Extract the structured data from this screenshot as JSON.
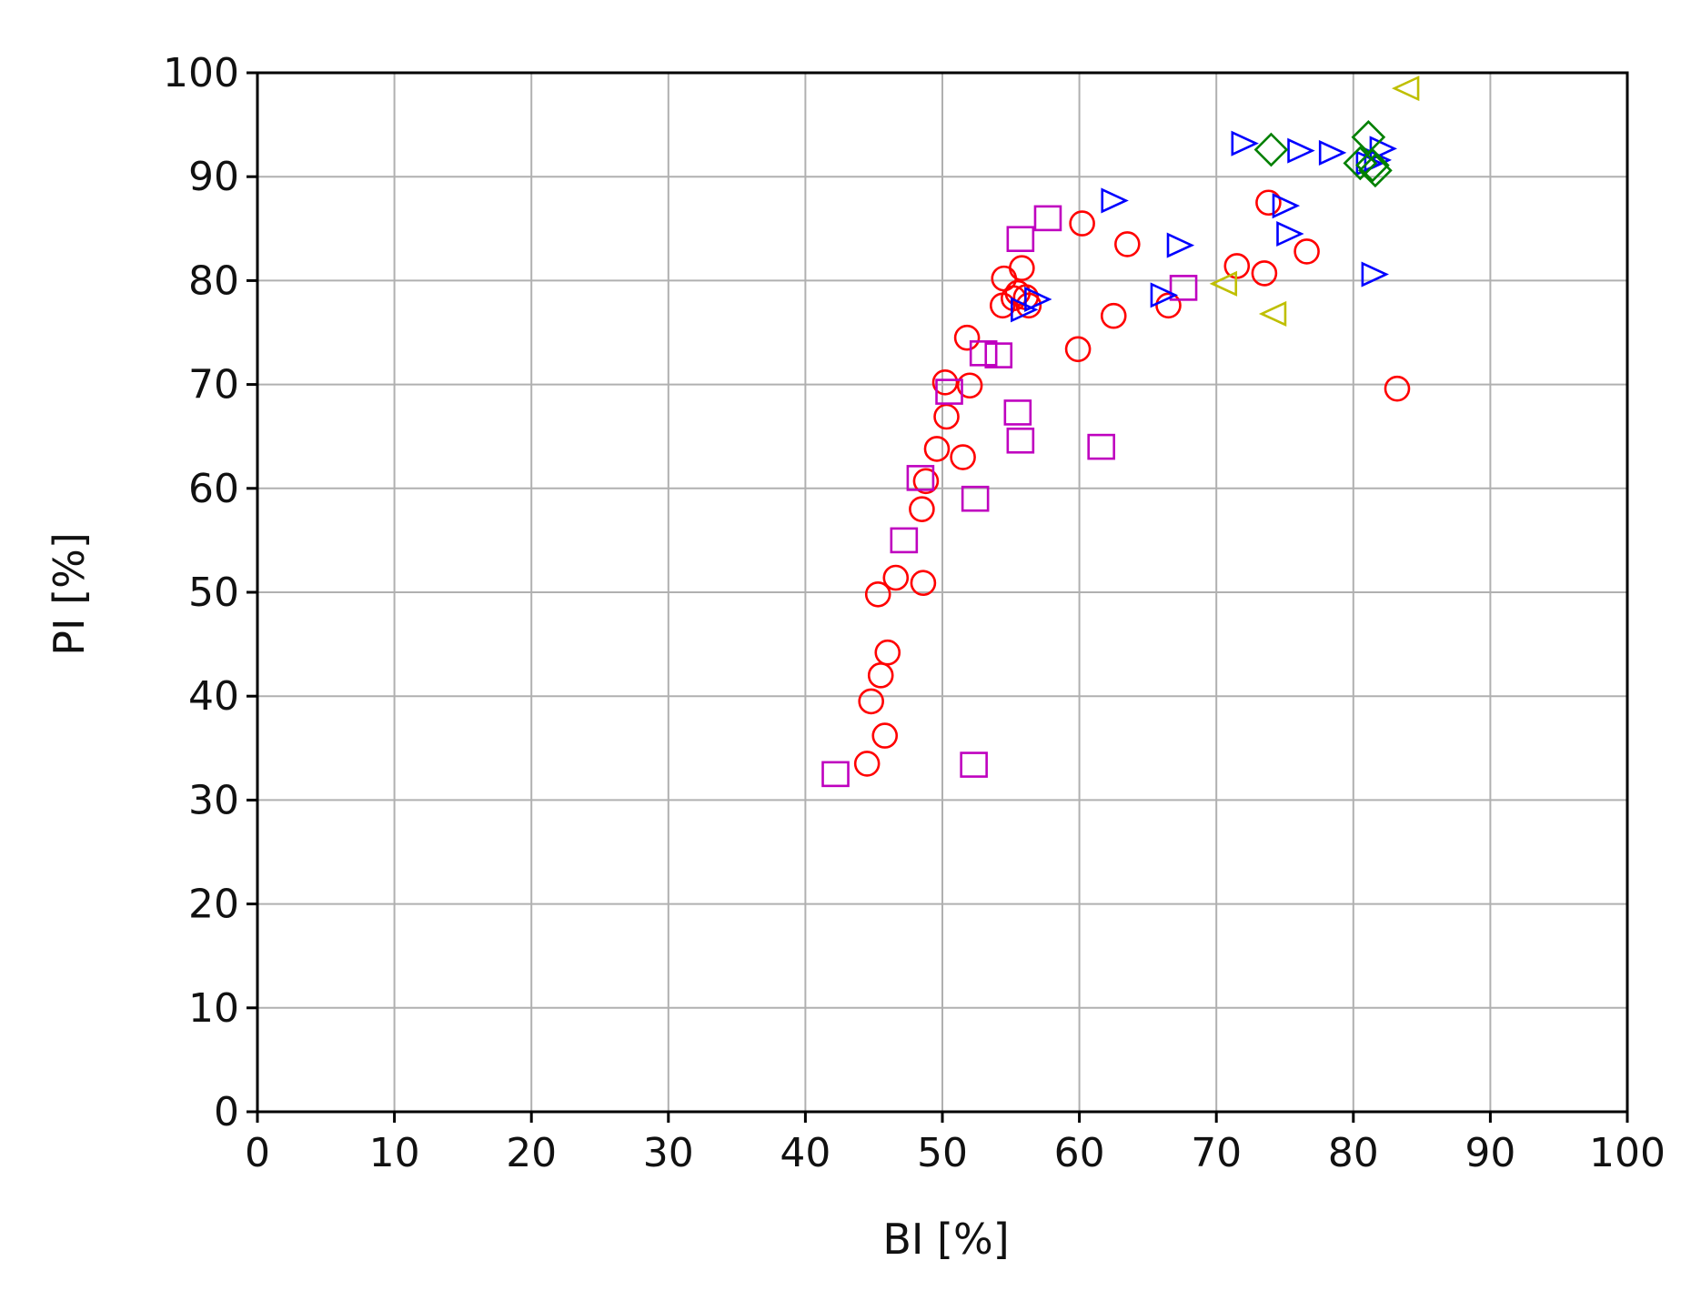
{
  "chart_data": {
    "type": "scatter",
    "title": "",
    "xlabel": "BI [%]",
    "ylabel": "PI [%]",
    "xlim": [
      0,
      100
    ],
    "ylim": [
      0,
      100
    ],
    "xticks": [
      "0",
      "10",
      "20",
      "30",
      "40",
      "50",
      "60",
      "70",
      "80",
      "90",
      "100"
    ],
    "yticks": [
      "0",
      "10",
      "20",
      "30",
      "40",
      "50",
      "60",
      "70",
      "80",
      "90",
      "100"
    ],
    "grid": true,
    "legend": "none",
    "series": [
      {
        "marker": "circle",
        "color": "#ff0000",
        "points": [
          [
            44.5,
            33.5
          ],
          [
            45.8,
            36.2
          ],
          [
            44.8,
            39.5
          ],
          [
            45.5,
            42
          ],
          [
            46,
            44.2
          ],
          [
            45.3,
            49.8
          ],
          [
            46.6,
            51.4
          ],
          [
            48.6,
            50.9
          ],
          [
            48.5,
            58
          ],
          [
            48.8,
            60.7
          ],
          [
            49.6,
            63.8
          ],
          [
            51.5,
            63
          ],
          [
            50.3,
            66.9
          ],
          [
            50.2,
            70.2
          ],
          [
            52,
            69.9
          ],
          [
            51.8,
            74.5
          ],
          [
            54.4,
            77.6
          ],
          [
            54.5,
            80.2
          ],
          [
            55.2,
            78.3
          ],
          [
            55.5,
            78.8
          ],
          [
            55.8,
            81.2
          ],
          [
            56.1,
            78.4
          ],
          [
            56.3,
            77.6
          ],
          [
            59.9,
            73.4
          ],
          [
            60.2,
            85.5
          ],
          [
            62.5,
            76.6
          ],
          [
            63.5,
            83.5
          ],
          [
            66.5,
            77.6
          ],
          [
            71.5,
            81.4
          ],
          [
            73.5,
            80.7
          ],
          [
            73.8,
            87.5
          ],
          [
            76.6,
            82.8
          ],
          [
            83.2,
            69.6
          ]
        ]
      },
      {
        "marker": "square",
        "color": "#bf00bf",
        "points": [
          [
            42.2,
            32.5
          ],
          [
            52.3,
            33.4
          ],
          [
            47.2,
            55
          ],
          [
            48.4,
            61
          ],
          [
            52.4,
            59
          ],
          [
            50.5,
            69.3
          ],
          [
            53,
            73
          ],
          [
            54.1,
            72.8
          ],
          [
            55.5,
            67.3
          ],
          [
            55.7,
            64.6
          ],
          [
            61.6,
            64
          ],
          [
            55.7,
            84
          ],
          [
            57.7,
            86
          ],
          [
            67.6,
            79.3
          ]
        ]
      },
      {
        "marker": "triangle-right",
        "color": "#0000ff",
        "points": [
          [
            55.8,
            77.2
          ],
          [
            56.8,
            78.2
          ],
          [
            62.4,
            87.7
          ],
          [
            66,
            78.6
          ],
          [
            67.2,
            83.4
          ],
          [
            71.9,
            93.2
          ],
          [
            74.9,
            87.2
          ],
          [
            75.2,
            84.5
          ],
          [
            76,
            92.5
          ],
          [
            78.3,
            92.3
          ],
          [
            81.4,
            80.6
          ],
          [
            81,
            91.3
          ],
          [
            82,
            92.7
          ],
          [
            81.6,
            91.6
          ]
        ]
      },
      {
        "marker": "diamond",
        "color": "#008000",
        "points": [
          [
            74,
            92.6
          ],
          [
            80.5,
            91.3
          ],
          [
            81.1,
            93.8
          ],
          [
            81.4,
            91.1
          ],
          [
            81.6,
            90.6
          ]
        ]
      },
      {
        "marker": "triangle-left",
        "color": "#bfbf00",
        "points": [
          [
            70.7,
            79.7
          ],
          [
            74.3,
            76.8
          ],
          [
            84,
            98.5
          ]
        ]
      }
    ]
  }
}
